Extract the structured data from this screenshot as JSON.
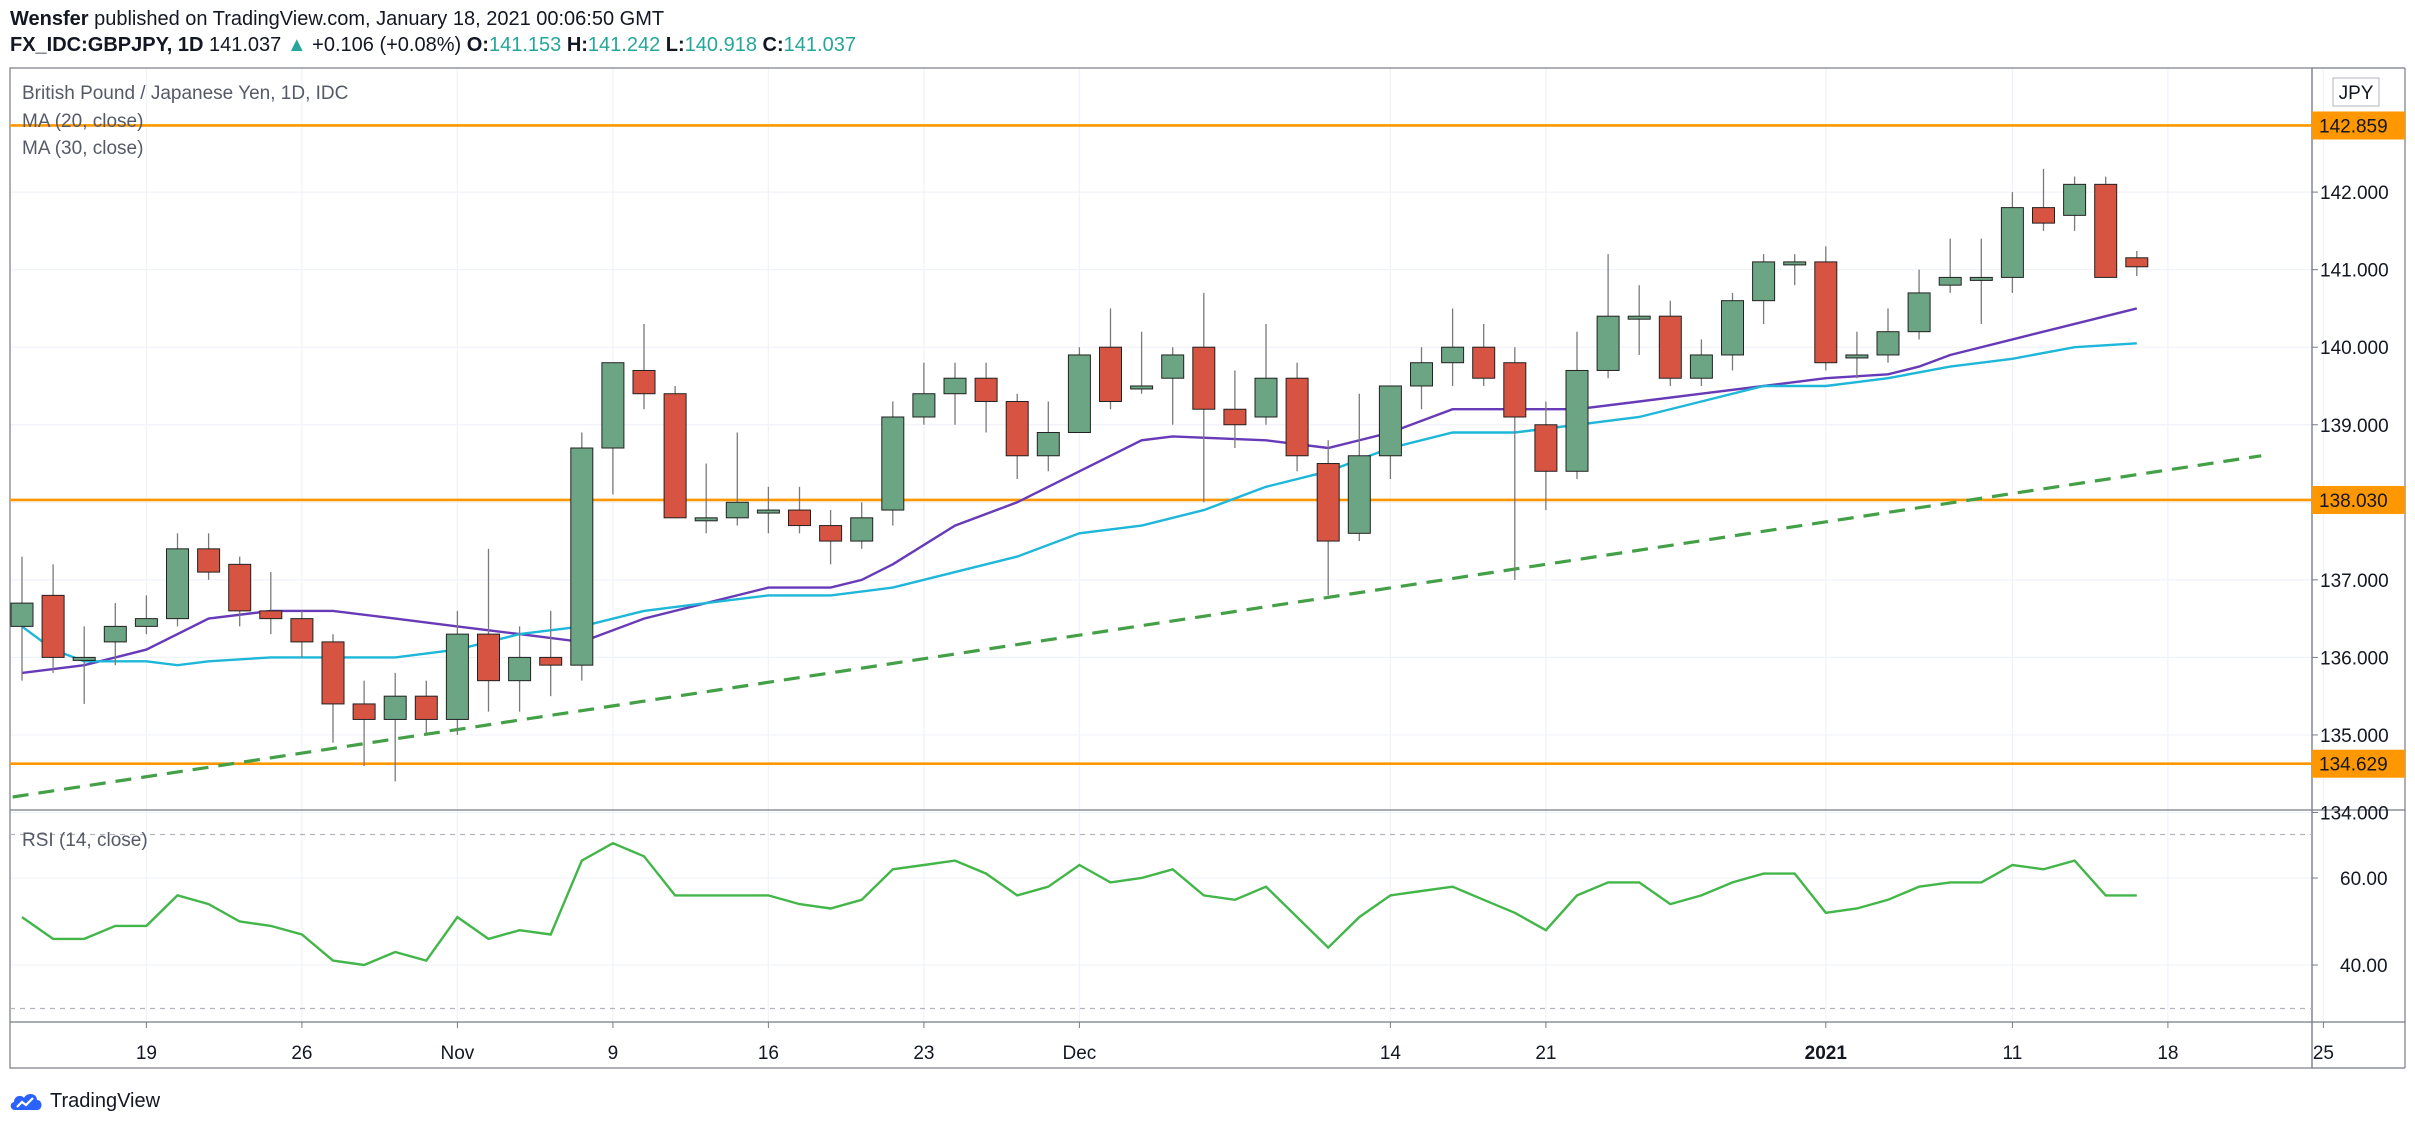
{
  "header": {
    "author": "Wensfer",
    "published": "published on TradingView.com, January 18, 2021 00:06:50 GMT",
    "symbol": "FX_IDC:GBPJPY, 1D",
    "last": "141.037",
    "arrow": "▲",
    "change": "+0.106 (+0.08%)",
    "o_label": "O:",
    "o_value": "141.153",
    "h_label": "H:",
    "h_value": "141.242",
    "l_label": "L:",
    "l_value": "140.918",
    "c_label": "C:",
    "c_value": "141.037"
  },
  "footer": {
    "brand": "TradingView"
  },
  "colors": {
    "bull": "#6ba583",
    "bear": "#d75442",
    "ma20": "#673ab7",
    "ma30": "#1eb7d9",
    "level": "#ff9800",
    "trend": "#43a047",
    "rsi": "#43b649"
  },
  "chart_data": {
    "type": "candlestick",
    "title": "British Pound / Japanese Yen, 1D, IDC",
    "currency": "JPY",
    "price_ylim": [
      133.6,
      143.2
    ],
    "price_ticks": [
      "134.000",
      "135.000",
      "136.000",
      "137.000",
      "138.000",
      "139.000",
      "140.000",
      "141.000",
      "142.000"
    ],
    "x_ticks": [
      {
        "label": "19",
        "i": 4
      },
      {
        "label": "26",
        "i": 9
      },
      {
        "label": "Nov",
        "i": 14
      },
      {
        "label": "9",
        "i": 19
      },
      {
        "label": "16",
        "i": 24
      },
      {
        "label": "23",
        "i": 29
      },
      {
        "label": "Dec",
        "i": 34
      },
      {
        "label": "14",
        "i": 44
      },
      {
        "label": "21",
        "i": 49
      },
      {
        "label": "2021",
        "i": 58
      },
      {
        "label": "11",
        "i": 64
      },
      {
        "label": "18",
        "i": 69
      },
      {
        "label": "25",
        "i": 74
      }
    ],
    "horizontal_levels": [
      {
        "value": 142.859,
        "label": "142.859"
      },
      {
        "value": 138.03,
        "label": "138.030"
      },
      {
        "value": 134.629,
        "label": "134.629"
      }
    ],
    "trendline": {
      "from": {
        "i": -0.3,
        "value": 134.2
      },
      "to": {
        "i": 72,
        "value": 138.6
      },
      "style": "dashed"
    },
    "candles": [
      {
        "i": 0,
        "o": 136.4,
        "h": 137.3,
        "l": 135.7,
        "c": 136.7
      },
      {
        "i": 1,
        "o": 136.8,
        "h": 137.2,
        "l": 135.8,
        "c": 136.0
      },
      {
        "i": 2,
        "o": 136.0,
        "h": 136.4,
        "l": 135.4,
        "c": 136.0
      },
      {
        "i": 3,
        "o": 136.2,
        "h": 136.7,
        "l": 135.9,
        "c": 136.4
      },
      {
        "i": 4,
        "o": 136.4,
        "h": 136.8,
        "l": 136.3,
        "c": 136.5
      },
      {
        "i": 5,
        "o": 136.5,
        "h": 137.6,
        "l": 136.4,
        "c": 137.4
      },
      {
        "i": 6,
        "o": 137.4,
        "h": 137.6,
        "l": 137.0,
        "c": 137.1
      },
      {
        "i": 7,
        "o": 137.2,
        "h": 137.3,
        "l": 136.4,
        "c": 136.6
      },
      {
        "i": 8,
        "o": 136.6,
        "h": 137.1,
        "l": 136.3,
        "c": 136.5
      },
      {
        "i": 9,
        "o": 136.5,
        "h": 136.6,
        "l": 136.0,
        "c": 136.2
      },
      {
        "i": 10,
        "o": 136.2,
        "h": 136.3,
        "l": 134.9,
        "c": 135.4
      },
      {
        "i": 11,
        "o": 135.4,
        "h": 135.7,
        "l": 134.6,
        "c": 135.2
      },
      {
        "i": 12,
        "o": 135.2,
        "h": 135.8,
        "l": 134.4,
        "c": 135.5
      },
      {
        "i": 13,
        "o": 135.5,
        "h": 135.7,
        "l": 135.0,
        "c": 135.2
      },
      {
        "i": 14,
        "o": 135.2,
        "h": 136.6,
        "l": 135.0,
        "c": 136.3
      },
      {
        "i": 15,
        "o": 136.3,
        "h": 137.4,
        "l": 135.3,
        "c": 135.7
      },
      {
        "i": 16,
        "o": 135.7,
        "h": 136.4,
        "l": 135.3,
        "c": 136.0
      },
      {
        "i": 17,
        "o": 136.0,
        "h": 136.6,
        "l": 135.5,
        "c": 135.9
      },
      {
        "i": 18,
        "o": 135.9,
        "h": 138.9,
        "l": 135.7,
        "c": 138.7
      },
      {
        "i": 19,
        "o": 138.7,
        "h": 139.8,
        "l": 138.1,
        "c": 139.8
      },
      {
        "i": 20,
        "o": 139.7,
        "h": 140.3,
        "l": 139.2,
        "c": 139.4
      },
      {
        "i": 21,
        "o": 139.4,
        "h": 139.5,
        "l": 137.8,
        "c": 137.8
      },
      {
        "i": 22,
        "o": 137.8,
        "h": 138.5,
        "l": 137.6,
        "c": 137.8
      },
      {
        "i": 23,
        "o": 137.8,
        "h": 138.9,
        "l": 137.7,
        "c": 138.0
      },
      {
        "i": 24,
        "o": 137.9,
        "h": 138.2,
        "l": 137.6,
        "c": 137.9
      },
      {
        "i": 25,
        "o": 137.9,
        "h": 138.2,
        "l": 137.6,
        "c": 137.7
      },
      {
        "i": 26,
        "o": 137.7,
        "h": 137.9,
        "l": 137.2,
        "c": 137.5
      },
      {
        "i": 27,
        "o": 137.5,
        "h": 138.0,
        "l": 137.4,
        "c": 137.8
      },
      {
        "i": 28,
        "o": 137.9,
        "h": 139.3,
        "l": 137.7,
        "c": 139.1
      },
      {
        "i": 29,
        "o": 139.1,
        "h": 139.8,
        "l": 139.0,
        "c": 139.4
      },
      {
        "i": 30,
        "o": 139.4,
        "h": 139.8,
        "l": 139.0,
        "c": 139.6
      },
      {
        "i": 31,
        "o": 139.6,
        "h": 139.8,
        "l": 138.9,
        "c": 139.3
      },
      {
        "i": 32,
        "o": 139.3,
        "h": 139.4,
        "l": 138.3,
        "c": 138.6
      },
      {
        "i": 33,
        "o": 138.6,
        "h": 139.3,
        "l": 138.4,
        "c": 138.9
      },
      {
        "i": 34,
        "o": 138.9,
        "h": 140.0,
        "l": 138.9,
        "c": 139.9
      },
      {
        "i": 35,
        "o": 140.0,
        "h": 140.5,
        "l": 139.2,
        "c": 139.3
      },
      {
        "i": 36,
        "o": 139.5,
        "h": 140.2,
        "l": 139.4,
        "c": 139.5
      },
      {
        "i": 37,
        "o": 139.6,
        "h": 140.0,
        "l": 139.0,
        "c": 139.9
      },
      {
        "i": 38,
        "o": 140.0,
        "h": 140.7,
        "l": 138.0,
        "c": 139.2
      },
      {
        "i": 39,
        "o": 139.2,
        "h": 139.7,
        "l": 138.7,
        "c": 139.0
      },
      {
        "i": 40,
        "o": 139.1,
        "h": 140.3,
        "l": 139.0,
        "c": 139.6
      },
      {
        "i": 41,
        "o": 139.6,
        "h": 139.8,
        "l": 138.4,
        "c": 138.6
      },
      {
        "i": 42,
        "o": 138.5,
        "h": 138.8,
        "l": 136.8,
        "c": 137.5
      },
      {
        "i": 43,
        "o": 137.6,
        "h": 139.4,
        "l": 137.5,
        "c": 138.6
      },
      {
        "i": 44,
        "o": 138.6,
        "h": 139.5,
        "l": 138.3,
        "c": 139.5
      },
      {
        "i": 45,
        "o": 139.5,
        "h": 140.0,
        "l": 139.2,
        "c": 139.8
      },
      {
        "i": 46,
        "o": 139.8,
        "h": 140.5,
        "l": 139.5,
        "c": 140.0
      },
      {
        "i": 47,
        "o": 140.0,
        "h": 140.3,
        "l": 139.5,
        "c": 139.6
      },
      {
        "i": 48,
        "o": 139.8,
        "h": 140.0,
        "l": 137.0,
        "c": 139.1
      },
      {
        "i": 49,
        "o": 139.0,
        "h": 139.3,
        "l": 137.9,
        "c": 138.4
      },
      {
        "i": 50,
        "o": 138.4,
        "h": 140.2,
        "l": 138.3,
        "c": 139.7
      },
      {
        "i": 51,
        "o": 139.7,
        "h": 141.2,
        "l": 139.6,
        "c": 140.4
      },
      {
        "i": 52,
        "o": 140.4,
        "h": 140.8,
        "l": 139.9,
        "c": 140.4
      },
      {
        "i": 53,
        "o": 140.4,
        "h": 140.6,
        "l": 139.5,
        "c": 139.6
      },
      {
        "i": 54,
        "o": 139.6,
        "h": 140.1,
        "l": 139.5,
        "c": 139.9
      },
      {
        "i": 55,
        "o": 139.9,
        "h": 140.7,
        "l": 139.7,
        "c": 140.6
      },
      {
        "i": 56,
        "o": 140.6,
        "h": 141.2,
        "l": 140.3,
        "c": 141.1
      },
      {
        "i": 57,
        "o": 141.1,
        "h": 141.2,
        "l": 140.8,
        "c": 141.1
      },
      {
        "i": 58,
        "o": 141.1,
        "h": 141.3,
        "l": 139.7,
        "c": 139.8
      },
      {
        "i": 59,
        "o": 139.9,
        "h": 140.2,
        "l": 139.6,
        "c": 139.9
      },
      {
        "i": 60,
        "o": 139.9,
        "h": 140.5,
        "l": 139.8,
        "c": 140.2
      },
      {
        "i": 61,
        "o": 140.2,
        "h": 141.0,
        "l": 140.1,
        "c": 140.7
      },
      {
        "i": 62,
        "o": 140.8,
        "h": 141.4,
        "l": 140.7,
        "c": 140.9
      },
      {
        "i": 63,
        "o": 140.9,
        "h": 141.4,
        "l": 140.3,
        "c": 140.9
      },
      {
        "i": 64,
        "o": 140.9,
        "h": 142.0,
        "l": 140.7,
        "c": 141.8
      },
      {
        "i": 65,
        "o": 141.8,
        "h": 142.3,
        "l": 141.5,
        "c": 141.6
      },
      {
        "i": 66,
        "o": 141.7,
        "h": 142.2,
        "l": 141.5,
        "c": 142.1
      },
      {
        "i": 67,
        "o": 142.1,
        "h": 142.2,
        "l": 140.9,
        "c": 140.9
      },
      {
        "i": 68,
        "o": 141.153,
        "h": 141.242,
        "l": 140.918,
        "c": 141.037
      }
    ],
    "ma_series": [
      {
        "name": "MA (20, close)",
        "color": "#673ab7",
        "points": [
          [
            0,
            135.8
          ],
          [
            2,
            135.9
          ],
          [
            4,
            136.1
          ],
          [
            6,
            136.5
          ],
          [
            8,
            136.6
          ],
          [
            10,
            136.6
          ],
          [
            12,
            136.5
          ],
          [
            14,
            136.4
          ],
          [
            16,
            136.3
          ],
          [
            18,
            136.2
          ],
          [
            20,
            136.5
          ],
          [
            22,
            136.7
          ],
          [
            24,
            136.9
          ],
          [
            26,
            136.9
          ],
          [
            27,
            137.0
          ],
          [
            28,
            137.2
          ],
          [
            30,
            137.7
          ],
          [
            32,
            138.0
          ],
          [
            34,
            138.4
          ],
          [
            36,
            138.8
          ],
          [
            37,
            138.85
          ],
          [
            40,
            138.8
          ],
          [
            42,
            138.7
          ],
          [
            44,
            138.9
          ],
          [
            46,
            139.2
          ],
          [
            48,
            139.2
          ],
          [
            50,
            139.2
          ],
          [
            52,
            139.3
          ],
          [
            54,
            139.4
          ],
          [
            56,
            139.5
          ],
          [
            58,
            139.6
          ],
          [
            60,
            139.65
          ],
          [
            61,
            139.75
          ],
          [
            62,
            139.9
          ],
          [
            64,
            140.1
          ],
          [
            66,
            140.3
          ],
          [
            68,
            140.5
          ]
        ]
      },
      {
        "name": "MA (30, close)",
        "color": "#1eb7d9",
        "points": [
          [
            0,
            136.4
          ],
          [
            1,
            136.1
          ],
          [
            2,
            135.95
          ],
          [
            4,
            135.95
          ],
          [
            5,
            135.9
          ],
          [
            6,
            135.95
          ],
          [
            8,
            136.0
          ],
          [
            10,
            136.0
          ],
          [
            12,
            136.0
          ],
          [
            14,
            136.1
          ],
          [
            16,
            136.3
          ],
          [
            18,
            136.4
          ],
          [
            20,
            136.6
          ],
          [
            22,
            136.7
          ],
          [
            24,
            136.8
          ],
          [
            26,
            136.8
          ],
          [
            28,
            136.9
          ],
          [
            30,
            137.1
          ],
          [
            32,
            137.3
          ],
          [
            34,
            137.6
          ],
          [
            36,
            137.7
          ],
          [
            38,
            137.9
          ],
          [
            40,
            138.2
          ],
          [
            42,
            138.4
          ],
          [
            44,
            138.7
          ],
          [
            46,
            138.9
          ],
          [
            48,
            138.9
          ],
          [
            50,
            139.0
          ],
          [
            52,
            139.1
          ],
          [
            54,
            139.3
          ],
          [
            56,
            139.5
          ],
          [
            58,
            139.5
          ],
          [
            60,
            139.6
          ],
          [
            62,
            139.75
          ],
          [
            64,
            139.85
          ],
          [
            66,
            140.0
          ],
          [
            68,
            140.05
          ]
        ]
      }
    ],
    "rsi": {
      "name": "RSI (14, close)",
      "ylim": [
        28,
        72
      ],
      "ticks": [
        "40.00",
        "60.00"
      ],
      "bands": [
        30,
        70
      ],
      "values": [
        51,
        46,
        46,
        49,
        49,
        56,
        54,
        50,
        49,
        47,
        41,
        40,
        43,
        41,
        51,
        46,
        48,
        47,
        64,
        68,
        65,
        56,
        56,
        56,
        56,
        54,
        53,
        55,
        62,
        63,
        64,
        61,
        56,
        58,
        63,
        59,
        60,
        62,
        56,
        55,
        58,
        51,
        44,
        51,
        56,
        57,
        58,
        55,
        52,
        48,
        56,
        59,
        59,
        54,
        56,
        59,
        61,
        61,
        52,
        53,
        55,
        58,
        59,
        59,
        63,
        62,
        64,
        56,
        56
      ]
    },
    "legend": [
      "MA (20, close)",
      "MA (30, close)"
    ]
  }
}
